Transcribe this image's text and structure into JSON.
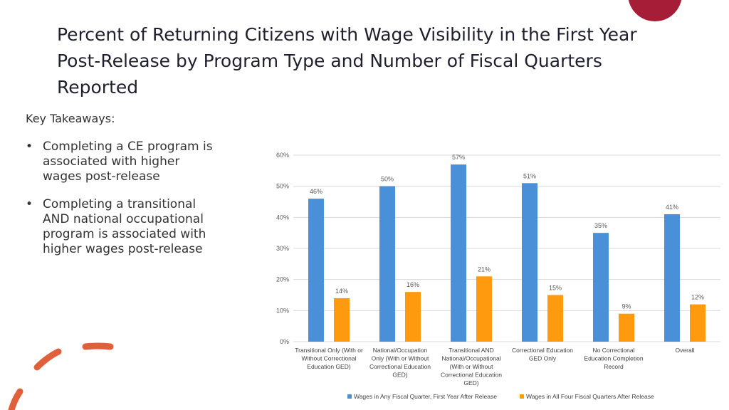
{
  "slide": {
    "title": "Percent of Returning Citizens with Wage Visibility in the First Year Post-Release by Program Type and Number of Fiscal Quarters Reported",
    "takeaways_label": "Key Takeaways:",
    "bullet_symbol": "•",
    "bullets": [
      "Completing a CE program is associated with higher wages post-release",
      "Completing a transitional AND national occupational program is associated with higher wages post-release"
    ],
    "accent_colors": {
      "circle": "#a51d36",
      "dashes": "#e0603c"
    }
  },
  "chart_data": {
    "type": "bar",
    "categories": [
      [
        "Transitional Only (With or",
        "Without Correctional",
        "Education GED)"
      ],
      [
        "National/Occupation",
        "Only (With or Without",
        "Correctional Education",
        "GED)"
      ],
      [
        "Transitional AND",
        "National/Occupational",
        "(With or Without",
        "Correctional Education",
        "GED)"
      ],
      [
        "Correctional Education",
        "GED Only"
      ],
      [
        "No Correctional",
        "Education Completion",
        "Record"
      ],
      [
        "Overall"
      ]
    ],
    "series": [
      {
        "name": "Wages in Any Fiscal Quarter, First Year After Release",
        "color": "#4a90d9",
        "values": [
          46,
          50,
          57,
          51,
          35,
          41
        ],
        "labels": [
          "46%",
          "50%",
          "57%",
          "51%",
          "35%",
          "41%"
        ]
      },
      {
        "name": "Wages in All Four Fiscal Quarters After Release",
        "color": "#ff9a0e",
        "values": [
          14,
          16,
          21,
          15,
          9,
          12
        ],
        "labels": [
          "14%",
          "16%",
          "21%",
          "15%",
          "9%",
          "12%"
        ]
      }
    ],
    "ylim": [
      0,
      60
    ],
    "yticks": [
      0,
      10,
      20,
      30,
      40,
      50,
      60
    ],
    "ytick_labels": [
      "0%",
      "10%",
      "20%",
      "30%",
      "40%",
      "50%",
      "60%"
    ],
    "grid": true,
    "legend_position": "bottom"
  }
}
